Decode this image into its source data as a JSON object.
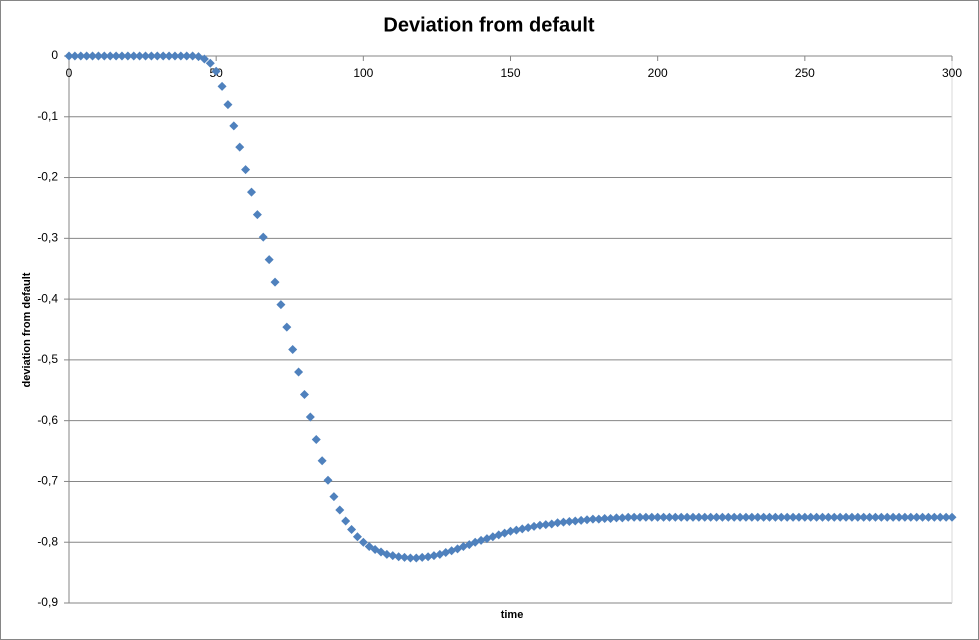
{
  "chart_data": {
    "type": "scatter",
    "title": "Deviation from default",
    "x_label": "time",
    "y_label": "deviation from default",
    "xlim": [
      0,
      300
    ],
    "xticks": [
      0,
      50,
      100,
      150,
      200,
      250,
      300
    ],
    "ylim": [
      -0.9,
      0
    ],
    "yticks": [
      {
        "value": -0.9,
        "label": "-0,9"
      },
      {
        "value": -0.8,
        "label": "-0,8"
      },
      {
        "value": -0.7,
        "label": "-0,7"
      },
      {
        "value": -0.6,
        "label": "-0,6"
      },
      {
        "value": -0.5,
        "label": "-0,5"
      },
      {
        "value": -0.4,
        "label": "-0,4"
      },
      {
        "value": -0.3,
        "label": "-0,3"
      },
      {
        "value": -0.2,
        "label": "-0,2"
      },
      {
        "value": -0.1,
        "label": "-0,1"
      },
      0
    ],
    "grid": true,
    "series": [
      {
        "color": "#4f81bd",
        "x": [
          0,
          2,
          4,
          6,
          8,
          10,
          12,
          14,
          16,
          18,
          20,
          22,
          24,
          26,
          28,
          30,
          32,
          34,
          36,
          38,
          40,
          42,
          44,
          46,
          48,
          50,
          52,
          54,
          56,
          58,
          60,
          62,
          64,
          66,
          68,
          70,
          72,
          74,
          76,
          78,
          80,
          82,
          84,
          86,
          88,
          90,
          92,
          94,
          96,
          98,
          100,
          102,
          104,
          106,
          108,
          110,
          112,
          114,
          116,
          118,
          120,
          122,
          124,
          126,
          128,
          130,
          132,
          134,
          136,
          138,
          140,
          142,
          144,
          146,
          148,
          150,
          152,
          154,
          156,
          158,
          160,
          162,
          164,
          166,
          168,
          170,
          172,
          174,
          176,
          178,
          180,
          182,
          184,
          186,
          188,
          190,
          192,
          194,
          196,
          198,
          200,
          202,
          204,
          206,
          208,
          210,
          212,
          214,
          216,
          218,
          220,
          222,
          224,
          226,
          228,
          230,
          232,
          234,
          236,
          238,
          240,
          242,
          244,
          246,
          248,
          250,
          252,
          254,
          256,
          258,
          260,
          262,
          264,
          266,
          268,
          270,
          272,
          274,
          276,
          278,
          280,
          282,
          284,
          286,
          288,
          290,
          292,
          294,
          296,
          298,
          300
        ],
        "values": [
          0,
          0,
          0,
          0,
          0,
          0,
          0,
          0,
          0,
          0,
          0,
          0,
          0,
          0,
          0,
          0,
          0,
          0,
          0,
          0,
          0,
          0,
          -0.001,
          -0.005,
          -0.012,
          -0.025,
          -0.05,
          -0.08,
          -0.115,
          -0.15,
          -0.187,
          -0.224,
          -0.261,
          -0.298,
          -0.335,
          -0.372,
          -0.409,
          -0.446,
          -0.483,
          -0.52,
          -0.557,
          -0.594,
          -0.631,
          -0.666,
          -0.698,
          -0.725,
          -0.747,
          -0.765,
          -0.779,
          -0.791,
          -0.8,
          -0.807,
          -0.812,
          -0.816,
          -0.82,
          -0.822,
          -0.824,
          -0.825,
          -0.826,
          -0.826,
          -0.825,
          -0.824,
          -0.822,
          -0.82,
          -0.817,
          -0.814,
          -0.811,
          -0.807,
          -0.804,
          -0.8,
          -0.797,
          -0.794,
          -0.791,
          -0.788,
          -0.785,
          -0.782,
          -0.78,
          -0.778,
          -0.776,
          -0.774,
          -0.772,
          -0.771,
          -0.77,
          -0.768,
          -0.767,
          -0.766,
          -0.765,
          -0.764,
          -0.763,
          -0.762,
          -0.762,
          -0.761,
          -0.761,
          -0.76,
          -0.76,
          -0.759,
          -0.759,
          -0.759,
          -0.759,
          -0.759,
          -0.759,
          -0.759,
          -0.759,
          -0.759,
          -0.759,
          -0.759,
          -0.759,
          -0.759,
          -0.759,
          -0.759,
          -0.759,
          -0.759,
          -0.759,
          -0.759,
          -0.759,
          -0.759,
          -0.759,
          -0.759,
          -0.759,
          -0.759,
          -0.759,
          -0.759,
          -0.759,
          -0.759,
          -0.759,
          -0.759,
          -0.759,
          -0.759,
          -0.759,
          -0.759,
          -0.759,
          -0.759,
          -0.759,
          -0.759,
          -0.759,
          -0.759,
          -0.759,
          -0.759,
          -0.759,
          -0.759,
          -0.759,
          -0.759,
          -0.759,
          -0.759,
          -0.759,
          -0.759,
          -0.759,
          -0.759,
          -0.759,
          -0.759,
          -0.759
        ]
      }
    ]
  }
}
